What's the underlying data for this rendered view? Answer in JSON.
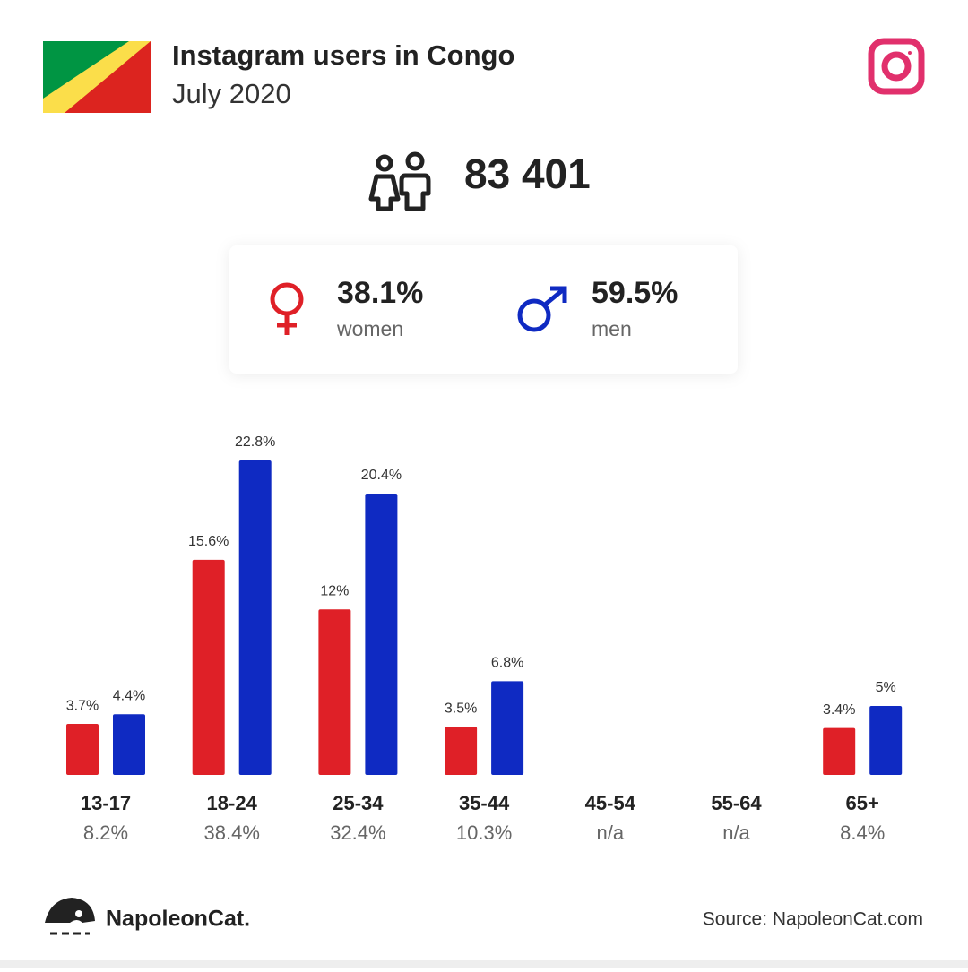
{
  "header": {
    "title": "Instagram users in Congo",
    "subtitle": "July 2020"
  },
  "total": "83 401",
  "gender": {
    "women_share": "38.1%",
    "women_label": "women",
    "men_share": "59.5%",
    "men_label": "men"
  },
  "chart_data": {
    "type": "bar",
    "categories": [
      "13-17",
      "18-24",
      "25-34",
      "35-44",
      "45-54",
      "55-64",
      "65+"
    ],
    "category_totals": [
      "8.2%",
      "38.4%",
      "32.4%",
      "10.3%",
      "n/a",
      "n/a",
      "8.4%"
    ],
    "series": [
      {
        "name": "women",
        "color": "#df2027",
        "values": [
          3.7,
          15.6,
          12,
          3.5,
          null,
          null,
          3.4
        ],
        "value_labels": [
          "3.7%",
          "15.6%",
          "12%",
          "3.5%",
          null,
          null,
          "3.4%"
        ]
      },
      {
        "name": "men",
        "color": "#0f2ac2",
        "values": [
          4.4,
          22.8,
          20.4,
          6.8,
          null,
          null,
          5
        ],
        "value_labels": [
          "4.4%",
          "22.8%",
          "20.4%",
          "6.8%",
          null,
          null,
          "5%"
        ]
      }
    ]
  },
  "footer": {
    "brand": "NapoleonCat.",
    "source": "Source: NapoleonCat.com"
  }
}
